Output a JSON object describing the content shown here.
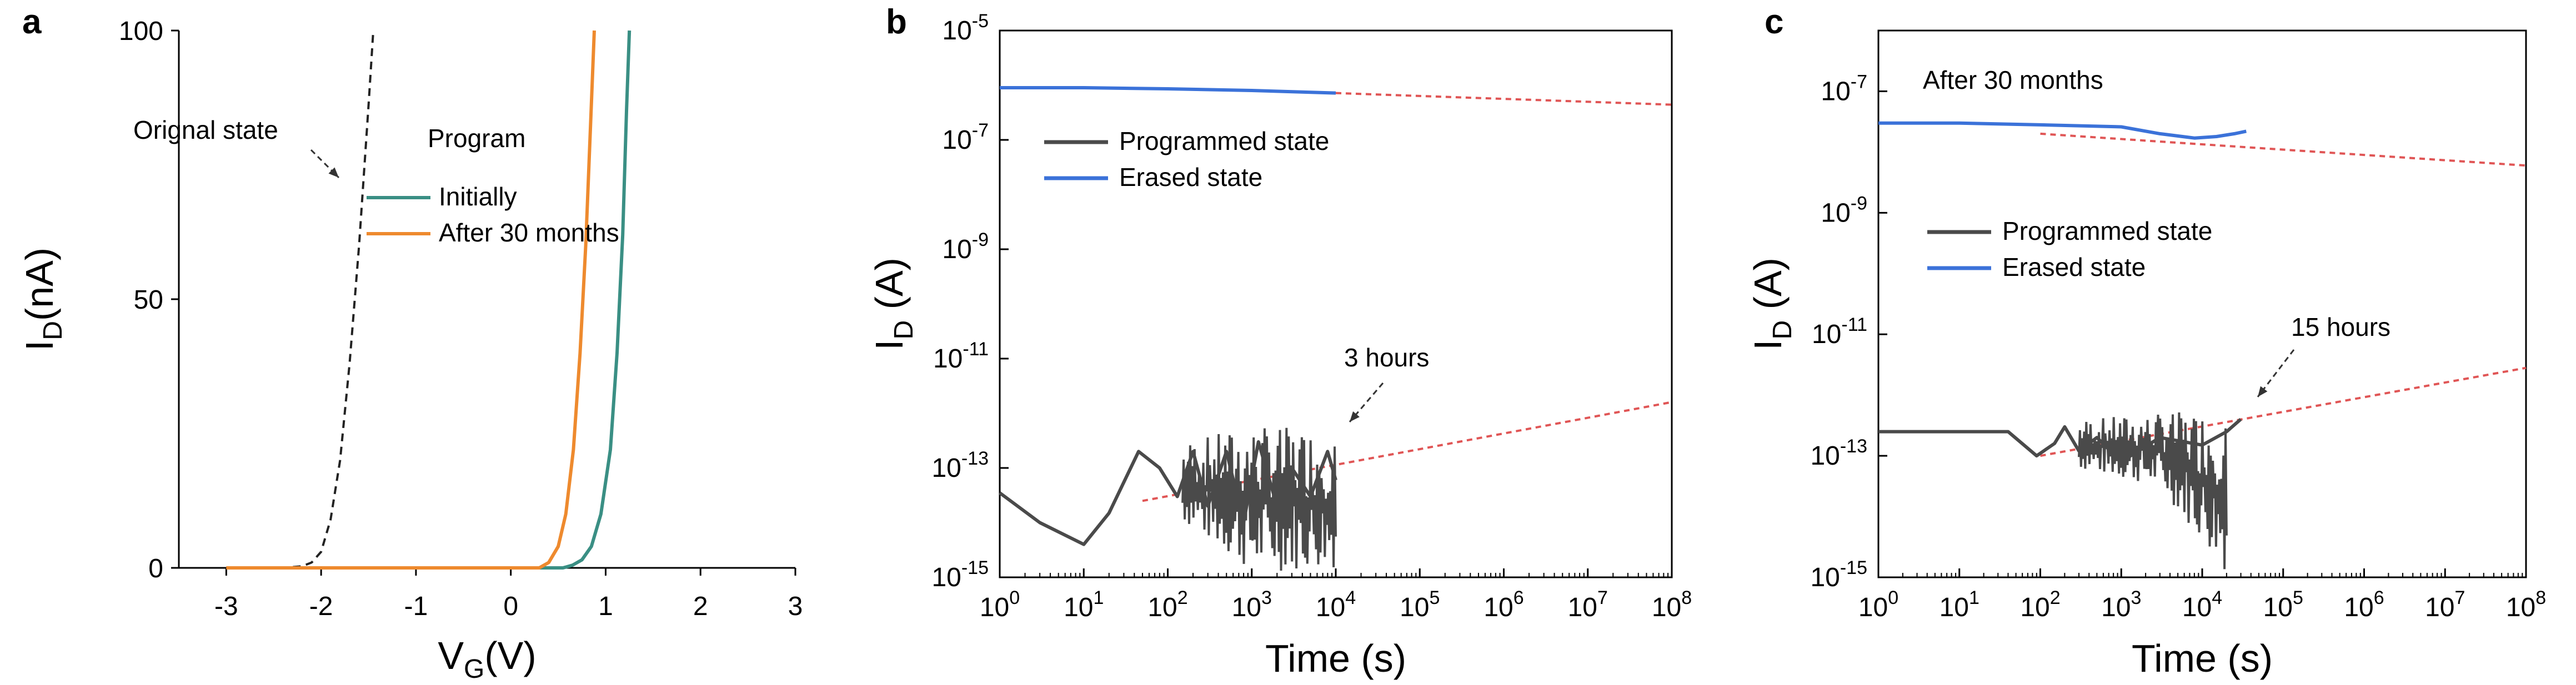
{
  "chart_data": [
    {
      "panel": "a",
      "type": "line",
      "xscale": "linear",
      "yscale": "linear",
      "xlabel": "V",
      "xlabel_sub": "G",
      "xlabel_unit": "(V)",
      "ylabel": "I",
      "ylabel_sub": "D",
      "ylabel_unit": "(nA)",
      "xlim": [
        -3.5,
        3
      ],
      "ylim": [
        0,
        100
      ],
      "xticks": [
        -3,
        -2,
        -1,
        0,
        1,
        2,
        3
      ],
      "xtick_labels": [
        "-3",
        "-2",
        "-1",
        "0",
        "1",
        "2",
        "3"
      ],
      "yticks": [
        0,
        50,
        100
      ],
      "ytick_labels": [
        "0",
        "50",
        "100"
      ],
      "legend_title": "Program",
      "series": [
        {
          "name": "Orignal state",
          "color": "#222222",
          "style": "dashed",
          "in_legend": false,
          "x": [
            -3.0,
            -2.4,
            -2.2,
            -2.1,
            -2.0,
            -1.9,
            -1.8,
            -1.7,
            -1.6,
            -1.5,
            -1.45
          ],
          "y": [
            0,
            0,
            0.3,
            1.0,
            3,
            9,
            20,
            38,
            60,
            86,
            100
          ]
        },
        {
          "name": "Initially",
          "color": "#3a8f84",
          "style": "solid",
          "in_legend": true,
          "x": [
            -3.0,
            0.55,
            0.65,
            0.75,
            0.85,
            0.95,
            1.05,
            1.12,
            1.18,
            1.22,
            1.25
          ],
          "y": [
            0,
            0,
            0.5,
            1.5,
            4,
            10,
            22,
            40,
            62,
            85,
            100
          ]
        },
        {
          "name": "After 30 months",
          "color": "#ee8a2e",
          "style": "solid",
          "in_legend": true,
          "x": [
            -3.0,
            0.3,
            0.4,
            0.5,
            0.58,
            0.66,
            0.73,
            0.79,
            0.84,
            0.88
          ],
          "y": [
            0,
            0,
            1,
            4,
            10,
            22,
            40,
            60,
            82,
            100
          ]
        }
      ],
      "annotations": [
        {
          "text": "Orignal state"
        }
      ]
    },
    {
      "panel": "b",
      "type": "line",
      "xscale": "log",
      "yscale": "log",
      "xlabel": "Time (s)",
      "ylabel": "I",
      "ylabel_sub": "D",
      "ylabel_unit": "(A)",
      "xlim": [
        1,
        100000000
      ],
      "ylim": [
        1e-15,
        1e-05
      ],
      "xtick_exponents": [
        "0",
        "1",
        "2",
        "3",
        "4",
        "5",
        "6",
        "7",
        "8"
      ],
      "ytick_exponents": [
        "-15",
        "-13",
        "-11",
        "-9",
        "-7",
        "-5"
      ],
      "tick_base": "10",
      "series": [
        {
          "name": "Programmed state",
          "color": "#4a4a4a",
          "style": "solid",
          "x": [
            1,
            3,
            10,
            20,
            45,
            80,
            130,
            200,
            300,
            500,
            800,
            1200,
            2000,
            3000,
            5000,
            8000,
            10000
          ],
          "y": [
            3.5e-14,
            1e-14,
            4e-15,
            1.5e-14,
            2e-13,
            1e-13,
            3e-14,
            2e-13,
            2e-14,
            2e-13,
            1e-14,
            3e-13,
            2e-14,
            1e-13,
            3e-14,
            2e-13,
            6e-14
          ],
          "noise_band": [
            {
              "x": 150,
              "lo": 1e-14,
              "hi": 3e-13
            },
            {
              "x": 1000,
              "lo": 1.2e-15,
              "hi": 6e-13
            },
            {
              "x": 10000,
              "lo": 1.5e-15,
              "hi": 5e-13
            }
          ]
        },
        {
          "name": "Erased state",
          "color": "#3b72d9",
          "style": "solid",
          "x": [
            1,
            10,
            100,
            1000,
            10000
          ],
          "y": [
            9e-07,
            9e-07,
            8.6e-07,
            8e-07,
            7.2e-07
          ]
        },
        {
          "name": "Programmed fit",
          "color": "#e05555",
          "style": "dashed",
          "in_legend": false,
          "x": [
            50,
            100000000
          ],
          "y": [
            2.5e-14,
            1.6e-12
          ]
        },
        {
          "name": "Erased fit",
          "color": "#e05555",
          "style": "dashed",
          "in_legend": false,
          "x": [
            10000,
            100000000
          ],
          "y": [
            7.2e-07,
            4.4e-07
          ]
        }
      ],
      "annotations": [
        {
          "text": "3 hours"
        }
      ]
    },
    {
      "panel": "c",
      "type": "line",
      "xscale": "log",
      "yscale": "log",
      "xlabel": "Time (s)",
      "ylabel": "I",
      "ylabel_sub": "D",
      "ylabel_unit": "(A)",
      "xlim": [
        1,
        100000000
      ],
      "ylim": [
        1e-15,
        1e-06
      ],
      "xtick_exponents": [
        "0",
        "1",
        "2",
        "3",
        "4",
        "5",
        "6",
        "7",
        "8"
      ],
      "ytick_exponents": [
        "-15",
        "-13",
        "-11",
        "-9",
        "-7"
      ],
      "tick_base": "10",
      "series": [
        {
          "name": "Programmed state",
          "color": "#4a4a4a",
          "style": "solid",
          "x": [
            1,
            10,
            40,
            90,
            100,
            150,
            200,
            300,
            500,
            1000,
            3000,
            10000,
            20000,
            30000
          ],
          "y": [
            2.5e-13,
            2.5e-13,
            2.5e-13,
            1e-13,
            1.1e-13,
            1.6e-13,
            3e-13,
            1.2e-13,
            2e-13,
            8e-14,
            2e-13,
            1.5e-13,
            2.5e-13,
            4e-13
          ],
          "noise_band": [
            {
              "x": 300,
              "lo": 6e-14,
              "hi": 4e-13
            },
            {
              "x": 3000,
              "lo": 3e-14,
              "hi": 5e-13
            },
            {
              "x": 20000,
              "lo": 1.2e-15,
              "hi": 6e-13
            }
          ]
        },
        {
          "name": "Erased state",
          "color": "#3b72d9",
          "style": "solid",
          "x": [
            1,
            10,
            100,
            1000,
            3000,
            8000,
            15000,
            25000,
            35000
          ],
          "y": [
            3e-08,
            3e-08,
            2.8e-08,
            2.6e-08,
            2e-08,
            1.7e-08,
            1.8e-08,
            2e-08,
            2.2e-08
          ]
        },
        {
          "name": "Programmed fit",
          "color": "#e05555",
          "style": "dashed",
          "in_legend": false,
          "x": [
            100,
            100000000
          ],
          "y": [
            1e-13,
            2.8e-12
          ]
        },
        {
          "name": "Erased fit",
          "color": "#e05555",
          "style": "dashed",
          "in_legend": false,
          "x": [
            100,
            100000000
          ],
          "y": [
            2e-08,
            6e-09
          ]
        }
      ],
      "annotations": [
        {
          "text": "15 hours"
        },
        {
          "text": "After 30 months"
        }
      ]
    }
  ]
}
